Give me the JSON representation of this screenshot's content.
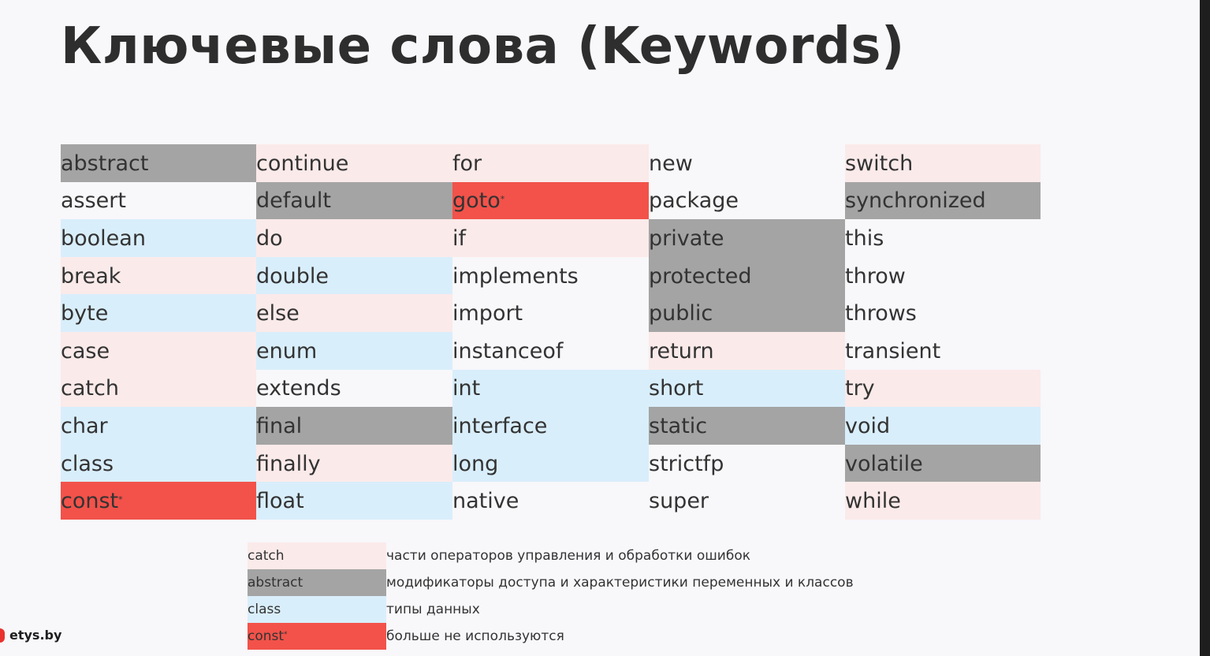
{
  "title": "Ключевые слова (Keywords)",
  "colors": {
    "control": "#fbeaea",
    "modifier": "#a4a4a4",
    "type": "#d9eefb",
    "deprecated": "#f2524a"
  },
  "columns": [
    [
      {
        "word": "abstract",
        "cat": "mod"
      },
      {
        "word": "assert",
        "cat": "none"
      },
      {
        "word": "boolean",
        "cat": "type"
      },
      {
        "word": "break",
        "cat": "ctrl"
      },
      {
        "word": "byte",
        "cat": "type"
      },
      {
        "word": "case",
        "cat": "ctrl"
      },
      {
        "word": "catch",
        "cat": "ctrl"
      },
      {
        "word": "char",
        "cat": "type"
      },
      {
        "word": "class",
        "cat": "type"
      },
      {
        "word": "const",
        "cat": "old",
        "mark": "*"
      }
    ],
    [
      {
        "word": "continue",
        "cat": "ctrl"
      },
      {
        "word": "default",
        "cat": "mod"
      },
      {
        "word": "do",
        "cat": "ctrl"
      },
      {
        "word": "double",
        "cat": "type"
      },
      {
        "word": "else",
        "cat": "ctrl"
      },
      {
        "word": "enum",
        "cat": "type"
      },
      {
        "word": "extends",
        "cat": "none"
      },
      {
        "word": "final",
        "cat": "mod"
      },
      {
        "word": "finally",
        "cat": "ctrl"
      },
      {
        "word": "float",
        "cat": "type"
      }
    ],
    [
      {
        "word": "for",
        "cat": "ctrl"
      },
      {
        "word": "goto",
        "cat": "old",
        "mark": "*"
      },
      {
        "word": "if",
        "cat": "ctrl"
      },
      {
        "word": "implements",
        "cat": "none"
      },
      {
        "word": "import",
        "cat": "none"
      },
      {
        "word": "instanceof",
        "cat": "none"
      },
      {
        "word": "int",
        "cat": "type"
      },
      {
        "word": "interface",
        "cat": "type"
      },
      {
        "word": "long",
        "cat": "type"
      },
      {
        "word": "native",
        "cat": "none"
      }
    ],
    [
      {
        "word": "new",
        "cat": "none"
      },
      {
        "word": "package",
        "cat": "none"
      },
      {
        "word": "private",
        "cat": "mod"
      },
      {
        "word": "protected",
        "cat": "mod"
      },
      {
        "word": "public",
        "cat": "mod"
      },
      {
        "word": "return",
        "cat": "ctrl"
      },
      {
        "word": "short",
        "cat": "type"
      },
      {
        "word": "static",
        "cat": "mod"
      },
      {
        "word": "strictfp",
        "cat": "none"
      },
      {
        "word": "super",
        "cat": "none"
      }
    ],
    [
      {
        "word": "switch",
        "cat": "ctrl"
      },
      {
        "word": "synchronized",
        "cat": "mod"
      },
      {
        "word": "this",
        "cat": "none"
      },
      {
        "word": "throw",
        "cat": "none"
      },
      {
        "word": "throws",
        "cat": "none"
      },
      {
        "word": "transient",
        "cat": "none"
      },
      {
        "word": "try",
        "cat": "ctrl"
      },
      {
        "word": "void",
        "cat": "type"
      },
      {
        "word": "volatile",
        "cat": "mod"
      },
      {
        "word": "while",
        "cat": "ctrl"
      }
    ]
  ],
  "legend": [
    {
      "sample": "catch",
      "cat": "ctrl",
      "desc": "части операторов управления и обработки ошибок"
    },
    {
      "sample": "abstract",
      "cat": "mod",
      "desc": "модификаторы доступа и характеристики переменных и классов"
    },
    {
      "sample": "class",
      "cat": "type",
      "desc": "типы данных"
    },
    {
      "sample": "const",
      "cat": "old",
      "mark": "*",
      "desc": "больше не используются"
    }
  ],
  "logo": {
    "text": "etys.by"
  }
}
